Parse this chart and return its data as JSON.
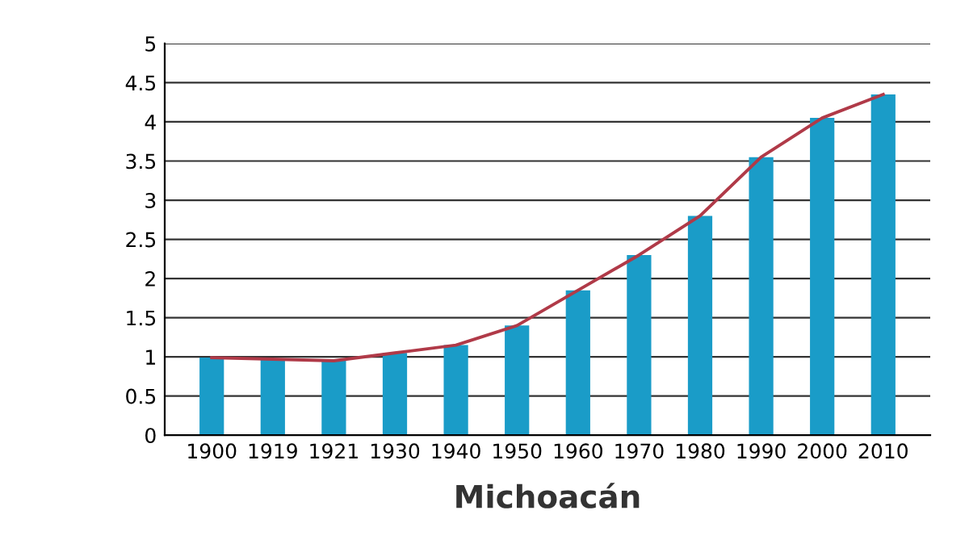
{
  "chart_data": {
    "type": "bar",
    "title": "Michoacán",
    "categories": [
      "1900",
      "1919",
      "1921",
      "1930",
      "1940",
      "1950",
      "1960",
      "1970",
      "1980",
      "1990",
      "2000",
      "2010"
    ],
    "series": [
      {
        "color": "#1a9cc8",
        "values": [
          0.99,
          0.97,
          0.95,
          1.05,
          1.15,
          1.4,
          1.85,
          2.3,
          2.8,
          3.55,
          4.05,
          4.35
        ]
      },
      {
        "type": "line",
        "color": "#b03a48",
        "values": [
          0.99,
          0.97,
          0.95,
          1.05,
          1.15,
          1.4,
          1.85,
          2.3,
          2.8,
          3.55,
          4.05,
          4.35
        ]
      }
    ],
    "ylim": [
      0,
      5
    ],
    "yticks": [
      0,
      0.5,
      1,
      1.5,
      2,
      2.5,
      3,
      3.5,
      4,
      4.5,
      5
    ],
    "grid": "y",
    "legend": false
  }
}
